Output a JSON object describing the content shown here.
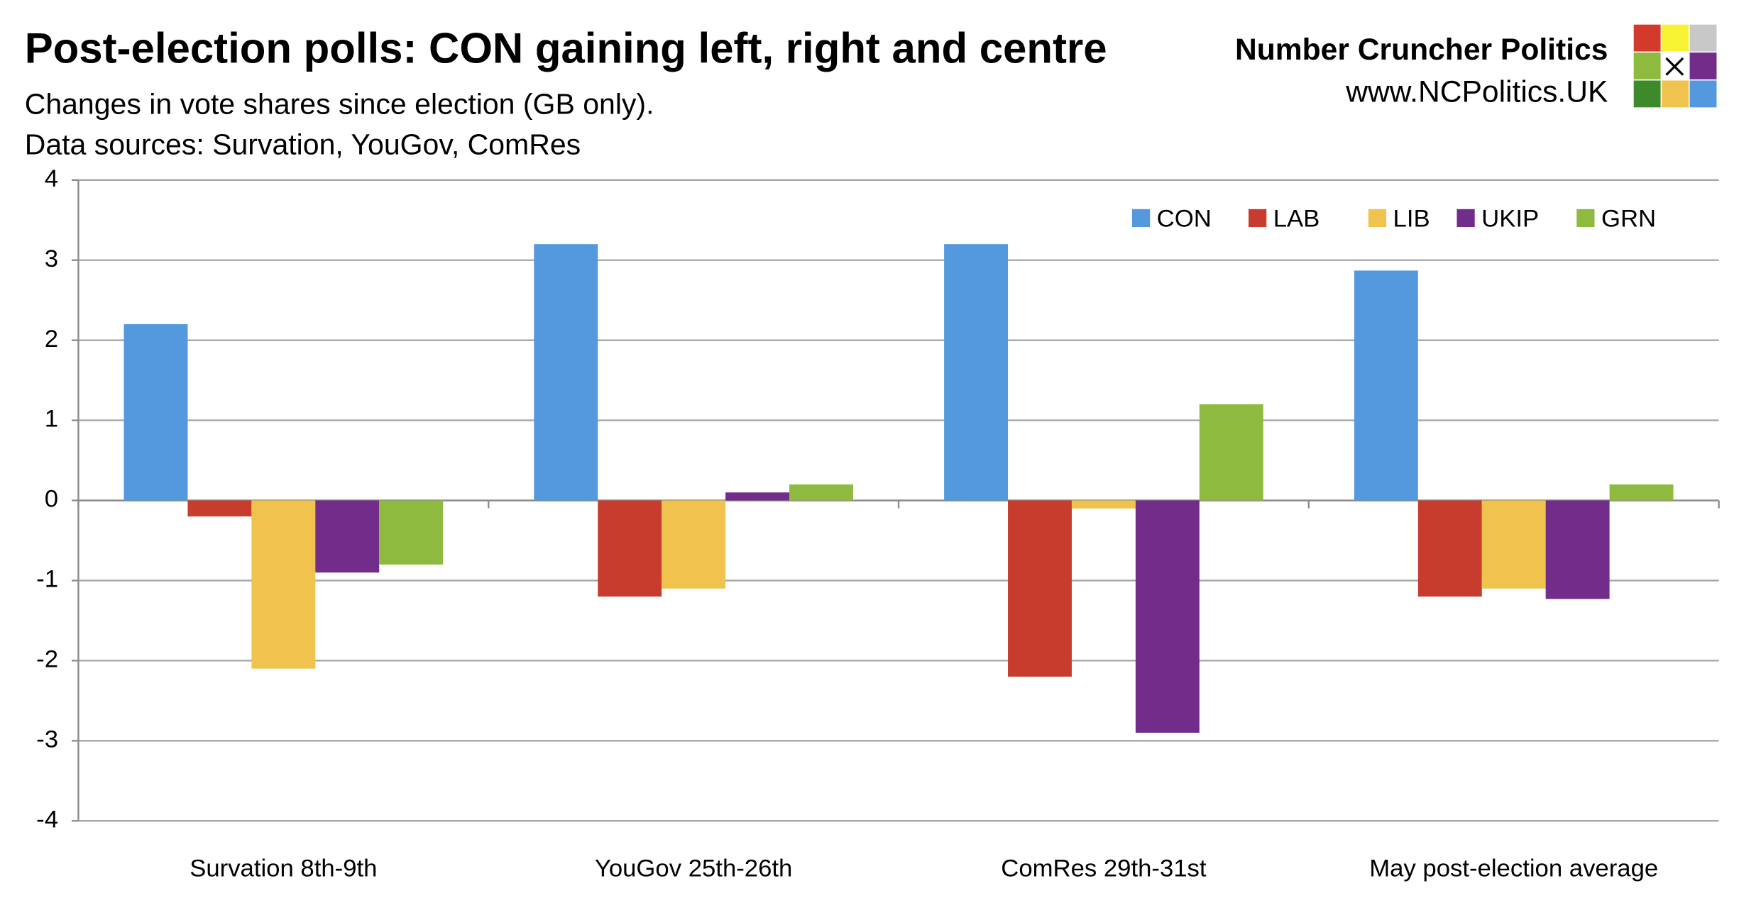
{
  "chart_data": {
    "type": "bar",
    "title": "Post-election polls: CON gaining left, right and centre",
    "subtitle": "Changes in vote shares since election (GB only).",
    "source": "Data sources: Survation, YouGov, ComRes",
    "brand": "Number Cruncher Politics",
    "website": "www.NCPolitics.UK",
    "categories": [
      "Survation 8th-9th",
      "YouGov 25th-26th",
      "ComRes 29th-31st",
      "May post-election average"
    ],
    "series": [
      {
        "name": "CON",
        "color": "#5499de",
        "values": [
          2.2,
          3.2,
          3.2,
          2.87
        ]
      },
      {
        "name": "LAB",
        "color": "#c83c2e",
        "values": [
          -0.2,
          -1.2,
          -2.2,
          -1.2
        ]
      },
      {
        "name": "LIB",
        "color": "#f0c24e",
        "values": [
          -2.1,
          -1.1,
          -0.1,
          -1.1
        ]
      },
      {
        "name": "UKIP",
        "color": "#722d8a",
        "values": [
          -0.9,
          0.1,
          -2.9,
          -1.23
        ]
      },
      {
        "name": "GRN",
        "color": "#8fba40",
        "values": [
          -0.8,
          0.2,
          1.2,
          0.2
        ]
      }
    ],
    "ylim": [
      -4,
      4
    ],
    "yticks": [
      -4,
      -3,
      -2,
      -1,
      0,
      1,
      2,
      3,
      4
    ],
    "grid": true,
    "legend": "top-right"
  }
}
